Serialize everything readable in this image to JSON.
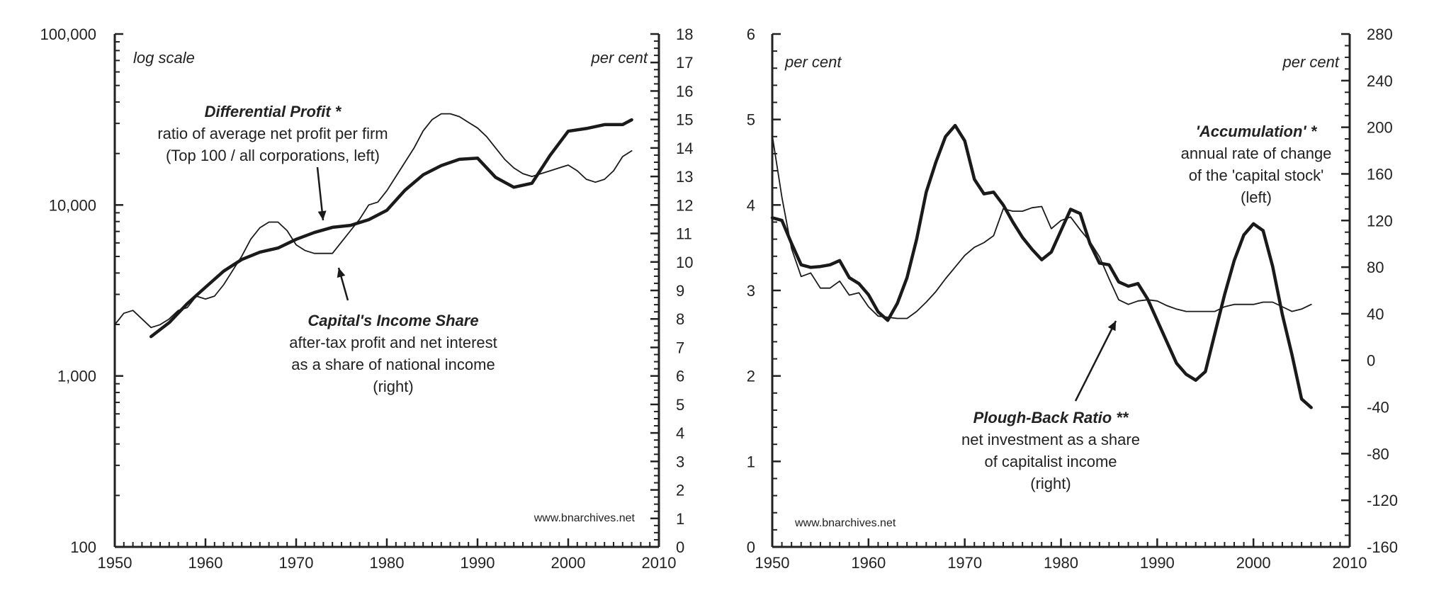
{
  "chart_data": [
    {
      "type": "line",
      "x_range": [
        1950,
        2010
      ],
      "x_ticks": [
        "1950",
        "1960",
        "1970",
        "1980",
        "1990",
        "2000",
        "2010"
      ],
      "left_axis": {
        "scale": "log",
        "range": [
          100,
          100000
        ],
        "tick_values": [
          100,
          1000,
          10000,
          100000
        ],
        "tick_labels": [
          "100",
          "1,000",
          "10,000",
          "100,000"
        ]
      },
      "right_axis": {
        "range": [
          0,
          18
        ],
        "tick_labels": [
          "0",
          "1",
          "2",
          "3",
          "4",
          "5",
          "6",
          "7",
          "8",
          "9",
          "10",
          "11",
          "12",
          "13",
          "14",
          "15",
          "16",
          "17",
          "18"
        ]
      },
      "left_note": "log scale",
      "right_note": "per cent",
      "source": "www.bnarchives.net",
      "annotations": [
        {
          "title": "Differential Profit *",
          "lines": [
            "ratio of average net profit per firm",
            "(Top 100 / all corporations, left)"
          ]
        },
        {
          "title": "Capital's Income Share",
          "lines": [
            "after-tax profit and net interest",
            "as a share of national income",
            "(right)"
          ]
        }
      ],
      "series": [
        {
          "name": "Differential Profit",
          "axis": "left",
          "style": "thick",
          "x": [
            1954,
            1956,
            1958,
            1960,
            1962,
            1964,
            1966,
            1968,
            1970,
            1972,
            1974,
            1976,
            1978,
            1980,
            1982,
            1984,
            1986,
            1988,
            1990,
            1992,
            1994,
            1996,
            1998,
            2000,
            2002,
            2004,
            2006,
            2007
          ],
          "y": [
            1700,
            2050,
            2650,
            3300,
            4100,
            4800,
            5300,
            5600,
            6300,
            6900,
            7400,
            7600,
            8200,
            9300,
            12200,
            15000,
            17000,
            18500,
            18800,
            14500,
            12700,
            13400,
            19500,
            27000,
            28000,
            29500,
            29500,
            31500
          ]
        },
        {
          "name": "Capital's Income Share",
          "axis": "right",
          "style": "thin",
          "x": [
            1950,
            1951,
            1952,
            1953,
            1954,
            1955,
            1956,
            1957,
            1958,
            1959,
            1960,
            1961,
            1962,
            1963,
            1964,
            1965,
            1966,
            1967,
            1968,
            1969,
            1970,
            1971,
            1972,
            1973,
            1974,
            1975,
            1976,
            1977,
            1978,
            1979,
            1980,
            1981,
            1982,
            1983,
            1984,
            1985,
            1986,
            1987,
            1988,
            1989,
            1990,
            1991,
            1992,
            1993,
            1994,
            1995,
            1996,
            1997,
            1998,
            1999,
            2000,
            2001,
            2002,
            2003,
            2004,
            2005,
            2006,
            2007
          ],
          "y": [
            7.8,
            8.2,
            8.3,
            8.0,
            7.7,
            7.8,
            8.0,
            8.3,
            8.4,
            8.8,
            8.7,
            8.8,
            9.2,
            9.7,
            10.2,
            10.8,
            11.2,
            11.4,
            11.4,
            11.1,
            10.6,
            10.4,
            10.3,
            10.3,
            10.3,
            10.7,
            11.1,
            11.5,
            12.0,
            12.1,
            12.5,
            13.0,
            13.5,
            14.0,
            14.6,
            15.0,
            15.2,
            15.2,
            15.1,
            14.9,
            14.7,
            14.4,
            14.0,
            13.6,
            13.3,
            13.1,
            13.0,
            13.1,
            13.2,
            13.3,
            13.4,
            13.2,
            12.9,
            12.8,
            12.9,
            13.2,
            13.7,
            13.9
          ]
        }
      ]
    },
    {
      "type": "line",
      "x_range": [
        1950,
        2010
      ],
      "x_ticks": [
        "1950",
        "1960",
        "1970",
        "1980",
        "1990",
        "2000",
        "2010"
      ],
      "left_axis": {
        "range": [
          0,
          6
        ],
        "tick_labels": [
          "0",
          "1",
          "2",
          "3",
          "4",
          "5",
          "6"
        ]
      },
      "right_axis": {
        "range": [
          -160,
          280
        ],
        "tick_labels": [
          "-160",
          "-120",
          "-80",
          "-40",
          "0",
          "40",
          "80",
          "120",
          "160",
          "200",
          "240",
          "280"
        ]
      },
      "left_note": "per cent",
      "right_note": "per cent",
      "source": "www.bnarchives.net",
      "annotations": [
        {
          "title": "'Accumulation' *",
          "lines": [
            "annual rate of change",
            "of the 'capital stock'",
            "(left)"
          ]
        },
        {
          "title": "Plough-Back Ratio **",
          "lines": [
            "net investment as a share",
            "of capitalist income",
            "(right)"
          ]
        }
      ],
      "series": [
        {
          "name": "Accumulation",
          "axis": "left",
          "style": "thick",
          "x": [
            1950,
            1951,
            1952,
            1953,
            1954,
            1955,
            1956,
            1957,
            1958,
            1959,
            1960,
            1961,
            1962,
            1963,
            1964,
            1965,
            1966,
            1967,
            1968,
            1969,
            1970,
            1971,
            1972,
            1973,
            1974,
            1975,
            1976,
            1977,
            1978,
            1979,
            1980,
            1981,
            1982,
            1983,
            1984,
            1985,
            1986,
            1987,
            1988,
            1989,
            1990,
            1991,
            1992,
            1993,
            1994,
            1995,
            1996,
            1997,
            1998,
            1999,
            2000,
            2001,
            2002,
            2003,
            2004,
            2005,
            2006
          ],
          "y": [
            3.85,
            3.82,
            3.55,
            3.3,
            3.27,
            3.28,
            3.3,
            3.35,
            3.15,
            3.08,
            2.95,
            2.75,
            2.65,
            2.85,
            3.15,
            3.6,
            4.15,
            4.5,
            4.8,
            4.93,
            4.75,
            4.3,
            4.13,
            4.15,
            4.0,
            3.8,
            3.62,
            3.48,
            3.36,
            3.45,
            3.7,
            3.95,
            3.9,
            3.55,
            3.32,
            3.3,
            3.1,
            3.05,
            3.08,
            2.9,
            2.65,
            2.4,
            2.15,
            2.02,
            1.95,
            2.05,
            2.5,
            2.95,
            3.35,
            3.65,
            3.78,
            3.7,
            3.28,
            2.72,
            2.25,
            1.73,
            1.63
          ]
        },
        {
          "name": "Plough-Back Ratio",
          "axis": "right",
          "style": "thin",
          "x": [
            1950,
            1951,
            1952,
            1953,
            1954,
            1955,
            1956,
            1957,
            1958,
            1959,
            1960,
            1961,
            1962,
            1963,
            1964,
            1965,
            1966,
            1967,
            1968,
            1969,
            1970,
            1971,
            1972,
            1973,
            1974,
            1975,
            1976,
            1977,
            1978,
            1979,
            1980,
            1981,
            1982,
            1983,
            1984,
            1985,
            1986,
            1987,
            1988,
            1989,
            1990,
            1991,
            1992,
            1993,
            1994,
            1995,
            1996,
            1997,
            1998,
            1999,
            2000,
            2001,
            2002,
            2003,
            2004,
            2005,
            2006
          ],
          "y": [
            193,
            140,
            96,
            72,
            75,
            62,
            62,
            68,
            56,
            58,
            46,
            38,
            37,
            36,
            36,
            42,
            50,
            59,
            70,
            80,
            90,
            97,
            101,
            107,
            130,
            128,
            128,
            131,
            132,
            113,
            120,
            123,
            112,
            102,
            89,
            70,
            52,
            48,
            51,
            52,
            51,
            47,
            44,
            42,
            42,
            42,
            42,
            46,
            48,
            48,
            48,
            50,
            50,
            46,
            42,
            44,
            48
          ]
        }
      ]
    }
  ]
}
